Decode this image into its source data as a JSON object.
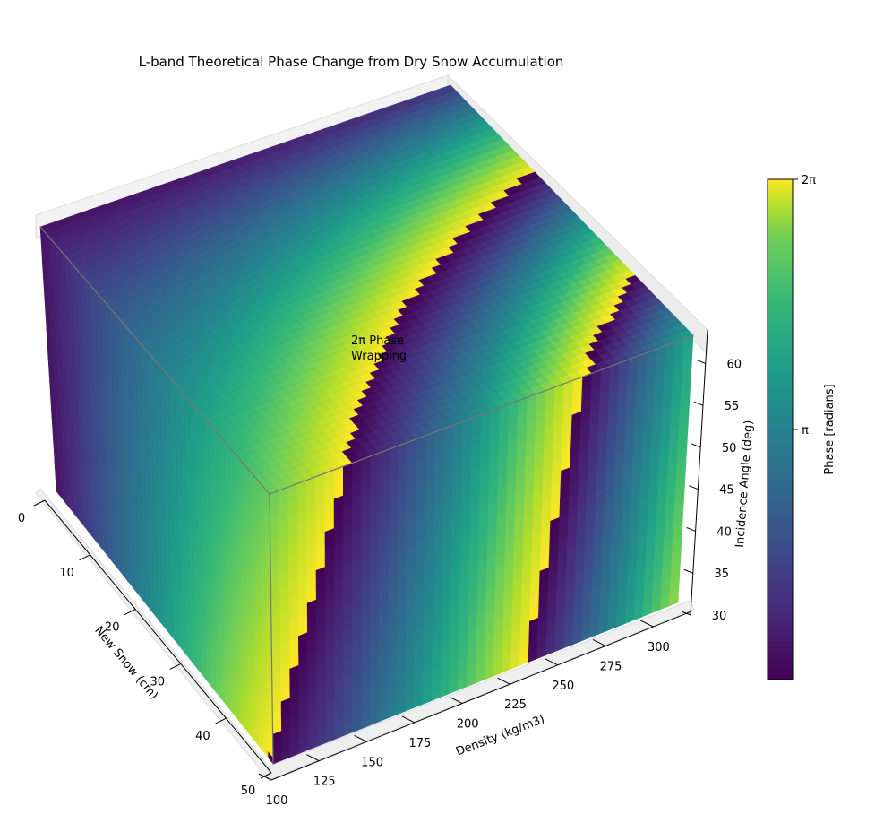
{
  "chart_data": {
    "type": "surface3d",
    "title": "L-band Theoretical Phase Change from Dry Snow Accumulation",
    "xlabel": "New Snow (cm)",
    "ylabel": "Density (kg/m3)",
    "zlabel": "Incidence Angle (deg)",
    "xticks": [
      "0",
      "10",
      "20",
      "30",
      "40",
      "50"
    ],
    "yticks": [
      "100",
      "125",
      "150",
      "175",
      "200",
      "225",
      "250",
      "275",
      "300"
    ],
    "zticks": [
      "30",
      "35",
      "40",
      "45",
      "50",
      "55",
      "60"
    ],
    "xlim": [
      0,
      50
    ],
    "ylim": [
      100,
      320
    ],
    "zlim": [
      30,
      64
    ],
    "annotation": "2π Phase\nWrapping",
    "colorbar": {
      "label": "Phase [radians]",
      "ticks": [
        "2π",
        "π"
      ],
      "range": [
        0,
        6.283
      ],
      "colormap": "viridis"
    }
  }
}
